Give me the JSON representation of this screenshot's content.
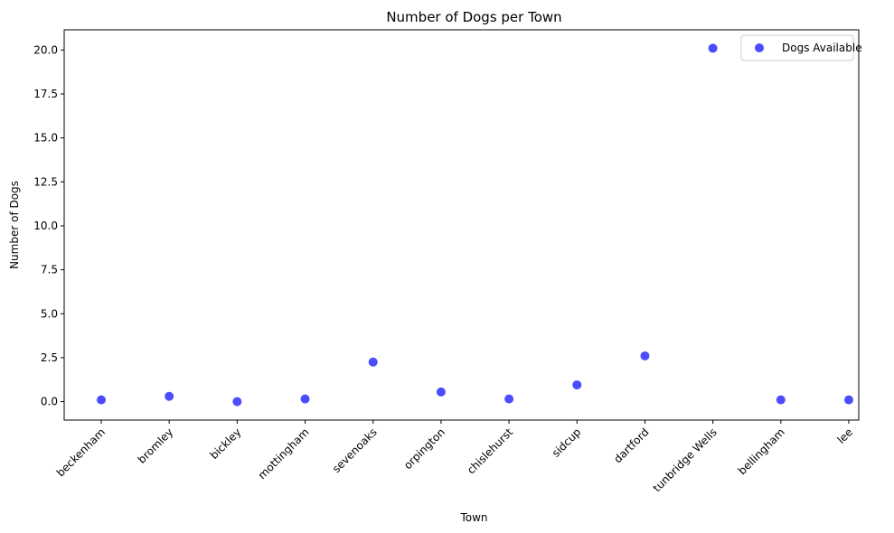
{
  "chart_data": {
    "type": "scatter",
    "title": "Number of Dogs per Town",
    "xlabel": "Town",
    "ylabel": "Number of Dogs",
    "categories": [
      "beckenham",
      "bromley",
      "bickley",
      "mottingham",
      "sevenoaks",
      "orpington",
      "chislehurst",
      "sidcup",
      "dartford",
      "tunbridge Wells",
      "bellingham",
      "lee"
    ],
    "series": [
      {
        "name": "Dogs Available",
        "color": "#0000ff",
        "values": [
          0.1,
          0.3,
          0.0,
          0.15,
          2.25,
          0.55,
          0.15,
          0.95,
          2.6,
          20.1,
          0.1,
          0.1
        ]
      }
    ],
    "ylim": [
      -1.05,
      21.15
    ],
    "yticks": [
      0.0,
      2.5,
      5.0,
      7.5,
      10.0,
      12.5,
      15.0,
      17.5,
      20.0
    ],
    "ytick_labels": [
      "0.0",
      "2.5",
      "5.0",
      "7.5",
      "10.0",
      "12.5",
      "15.0",
      "17.5",
      "20.0"
    ],
    "grid": false,
    "legend": "top-right"
  }
}
